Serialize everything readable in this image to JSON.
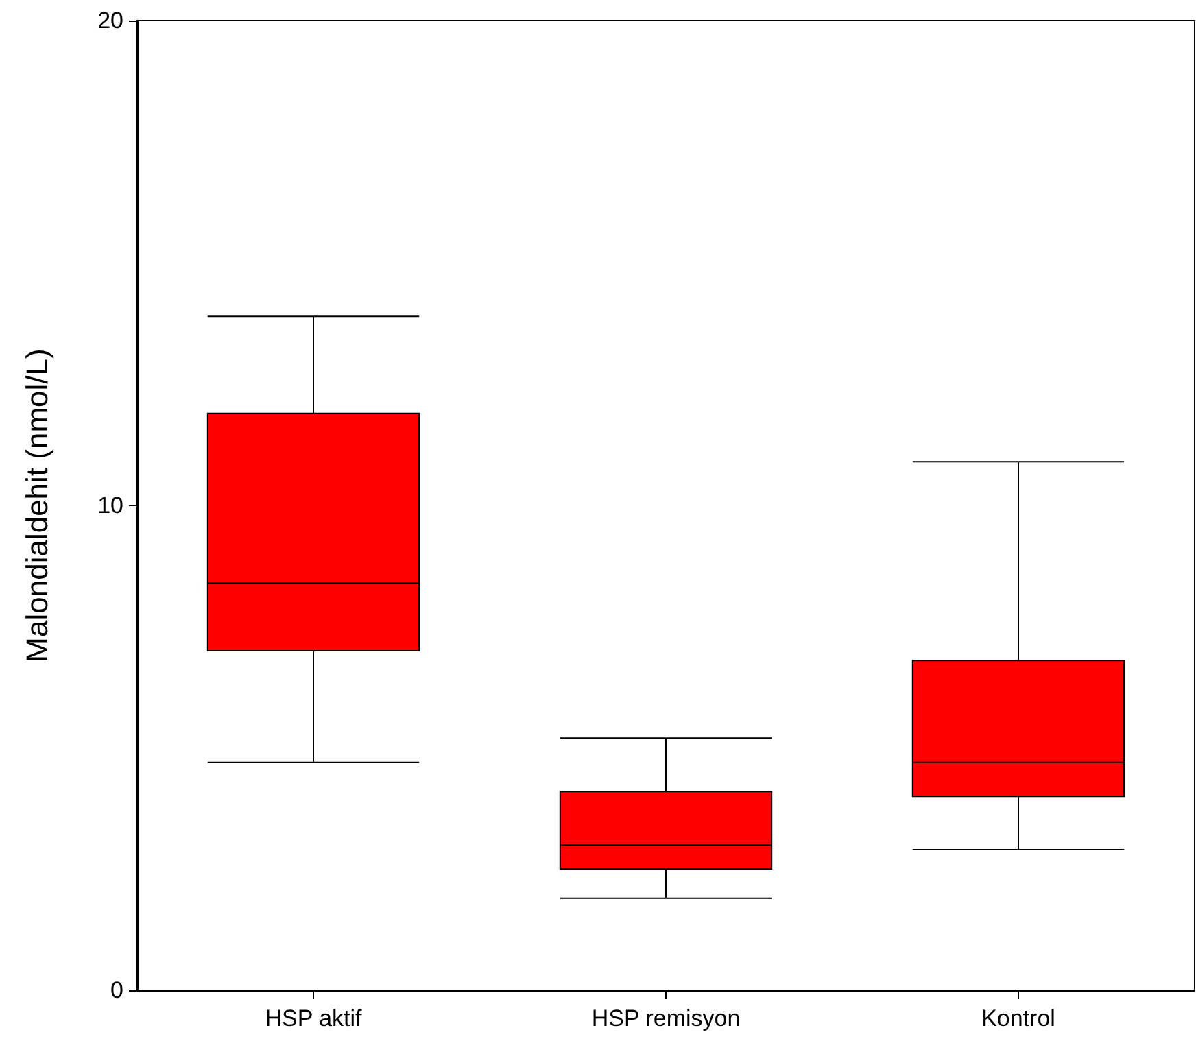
{
  "chart_data": {
    "type": "box",
    "ylabel": "Malondialdehit (nmol/L)",
    "categories": [
      "HSP aktif",
      "HSP remisyon",
      "Kontrol"
    ],
    "color": "#ff0000",
    "boxes": [
      {
        "low": 4.7,
        "q1": 7.0,
        "median": 8.4,
        "q3": 11.9,
        "high": 13.9
      },
      {
        "low": 1.9,
        "q1": 2.5,
        "median": 3.0,
        "q3": 4.1,
        "high": 5.2
      },
      {
        "low": 2.9,
        "q1": 4.0,
        "median": 4.7,
        "q3": 6.8,
        "high": 10.9
      }
    ],
    "ylim": [
      0,
      20
    ],
    "yticks": [
      0,
      10,
      20
    ],
    "grid": false
  }
}
